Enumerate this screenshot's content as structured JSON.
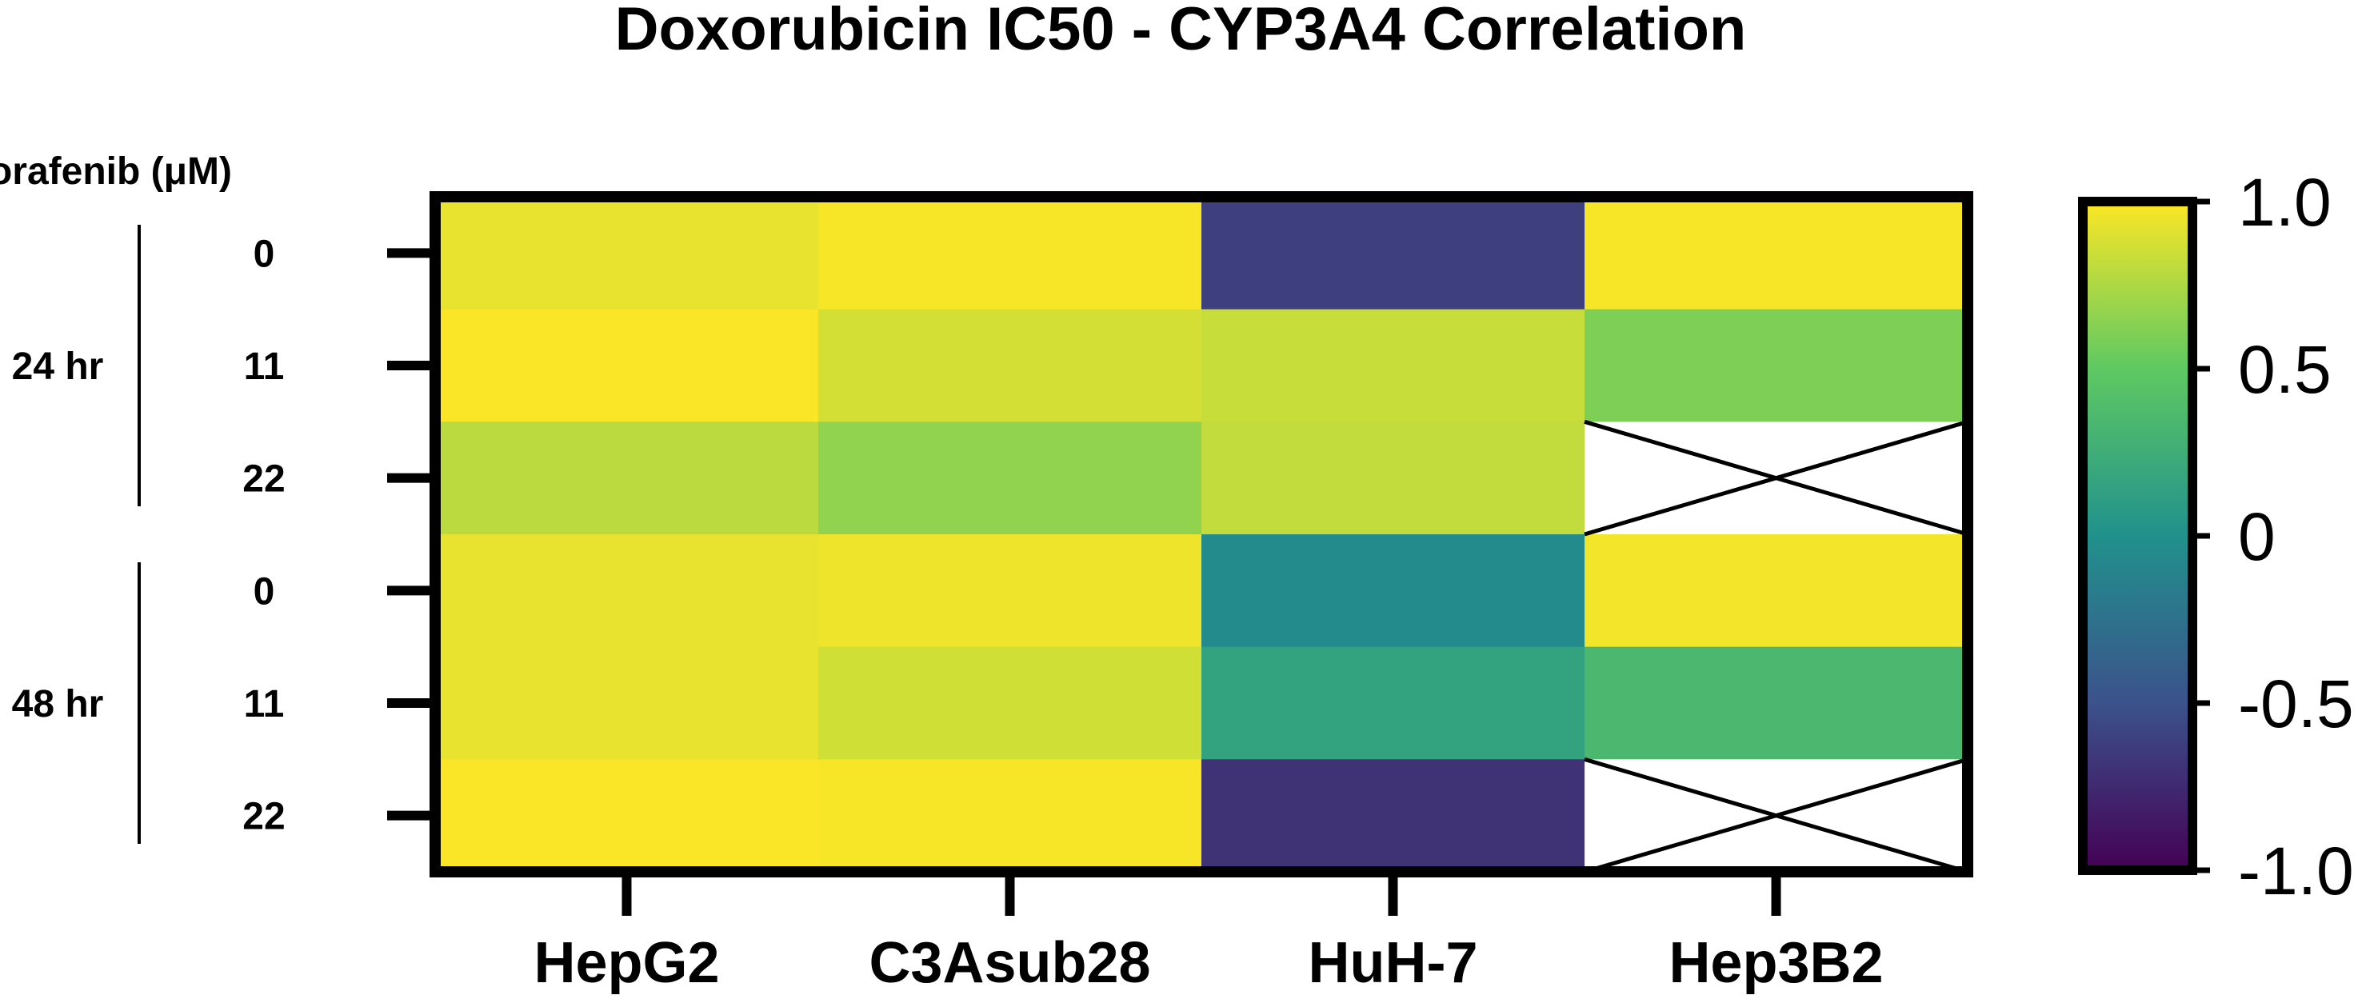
{
  "chart_data": {
    "type": "heatmap",
    "title": "Doxorubicin IC50 - CYP3A4 Correlation",
    "row_axis_title": "Sorafenib (μM)",
    "columns": [
      "HepG2",
      "C3Asub28",
      "HuH-7",
      "Hep3B2"
    ],
    "row_groups": [
      {
        "label": "24 hr",
        "rows": [
          "0",
          "11",
          "22"
        ]
      },
      {
        "label": "48 hr",
        "rows": [
          "0",
          "11",
          "22"
        ]
      }
    ],
    "values": [
      [
        0.93,
        0.98,
        -0.62,
        0.98
      ],
      [
        0.99,
        0.87,
        0.83,
        0.6
      ],
      [
        0.79,
        0.66,
        0.81,
        null
      ],
      [
        0.93,
        0.95,
        -0.05,
        0.97
      ],
      [
        0.93,
        0.86,
        0.15,
        0.35
      ],
      [
        0.99,
        0.98,
        -0.7,
        null
      ]
    ],
    "missing_marker": "cross",
    "colorscale": {
      "name": "viridis",
      "range": [
        -1.0,
        1.0
      ],
      "stops": [
        "#440154",
        "#3b528b",
        "#21918c",
        "#5ec962",
        "#fde725"
      ],
      "tick_labels": [
        "1.0",
        "0.5",
        "0",
        "-0.5",
        "-1.0"
      ],
      "tick_values": [
        1.0,
        0.5,
        0,
        -0.5,
        -1.0
      ]
    }
  }
}
